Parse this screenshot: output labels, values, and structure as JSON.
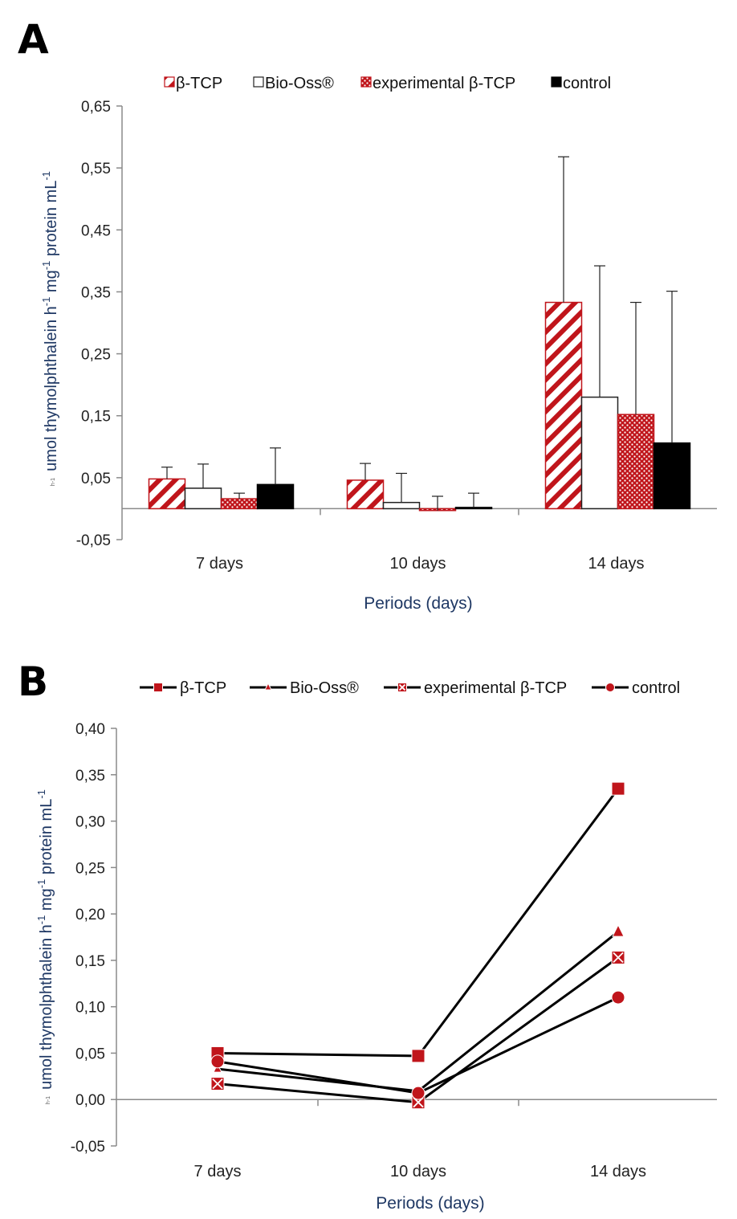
{
  "chart_data": [
    {
      "panel": "A",
      "type": "bar",
      "title": "",
      "categories": [
        "7 days",
        "10 days",
        "14 days"
      ],
      "series": [
        {
          "name": "β-TCP",
          "pattern": "hatch",
          "values": [
            0.048,
            0.046,
            0.333
          ],
          "errors": [
            0.067,
            0.073,
            0.568
          ]
        },
        {
          "name": "Bio-Oss®",
          "pattern": "white",
          "values": [
            0.033,
            0.01,
            0.18
          ],
          "errors": [
            0.072,
            0.057,
            0.392
          ]
        },
        {
          "name": "experimental β-TCP",
          "pattern": "dots",
          "values": [
            0.016,
            -0.003,
            0.152
          ],
          "errors": [
            0.025,
            0.02,
            0.333
          ]
        },
        {
          "name": "control",
          "pattern": "black",
          "values": [
            0.039,
            0.002,
            0.106
          ],
          "errors": [
            0.098,
            0.025,
            0.351
          ]
        }
      ],
      "xlabel": "Periods (days)",
      "ylabel": "umol thymolphthalein h-1 mg-1 protein mL-1",
      "ylabel_parts": {
        "a": "umol thymolphthalein h",
        "s1": "-1",
        "b": " mg",
        "s2": "-1",
        "c": " protein mL",
        "s3": "-1"
      },
      "ylabel_small": "h-1",
      "ylim": [
        -0.05,
        0.65
      ],
      "yticks": [
        "0,65",
        "0,55",
        "0,45",
        "0,35",
        "0,25",
        "0,15",
        "0,05",
        "-0,05"
      ],
      "ytick_values": [
        0.65,
        0.55,
        0.45,
        0.35,
        0.25,
        0.15,
        0.05,
        -0.05
      ],
      "legend_position": "top"
    },
    {
      "panel": "B",
      "type": "line",
      "title": "",
      "categories": [
        "7 days",
        "10 days",
        "14 days"
      ],
      "series": [
        {
          "name": "β-TCP",
          "marker": "square",
          "values": [
            0.05,
            0.047,
            0.335
          ]
        },
        {
          "name": "Bio-Oss®",
          "marker": "triangle",
          "values": [
            0.033,
            0.009,
            0.181
          ]
        },
        {
          "name": "experimental β-TCP",
          "marker": "xbox",
          "values": [
            0.017,
            -0.003,
            0.153
          ]
        },
        {
          "name": "control",
          "marker": "circle",
          "values": [
            0.041,
            0.007,
            0.11
          ]
        }
      ],
      "xlabel": "Periods (days)",
      "ylabel": "umol thymolphthalein h-1 mg-1 protein mL-1",
      "ylabel_parts": {
        "a": "umol thymolphthalein h",
        "s1": "-1",
        "b": " mg",
        "s2": "-1",
        "c": " protein mL",
        "s3": "-1"
      },
      "ylabel_small": "h-1",
      "ylim": [
        -0.05,
        0.4
      ],
      "yticks": [
        "0,40",
        "0,35",
        "0,30",
        "0,25",
        "0,20",
        "0,15",
        "0,10",
        "0,05",
        "0,00",
        "-0,05"
      ],
      "ytick_values": [
        0.4,
        0.35,
        0.3,
        0.25,
        0.2,
        0.15,
        0.1,
        0.05,
        0.0,
        -0.05
      ],
      "legend_position": "top"
    }
  ],
  "panels": {
    "a_letter": "A",
    "b_letter": "B"
  },
  "colors": {
    "red": "#c0151b",
    "black": "#000000",
    "axis": "#8a8a8a",
    "label_blue": "#1f3864"
  }
}
